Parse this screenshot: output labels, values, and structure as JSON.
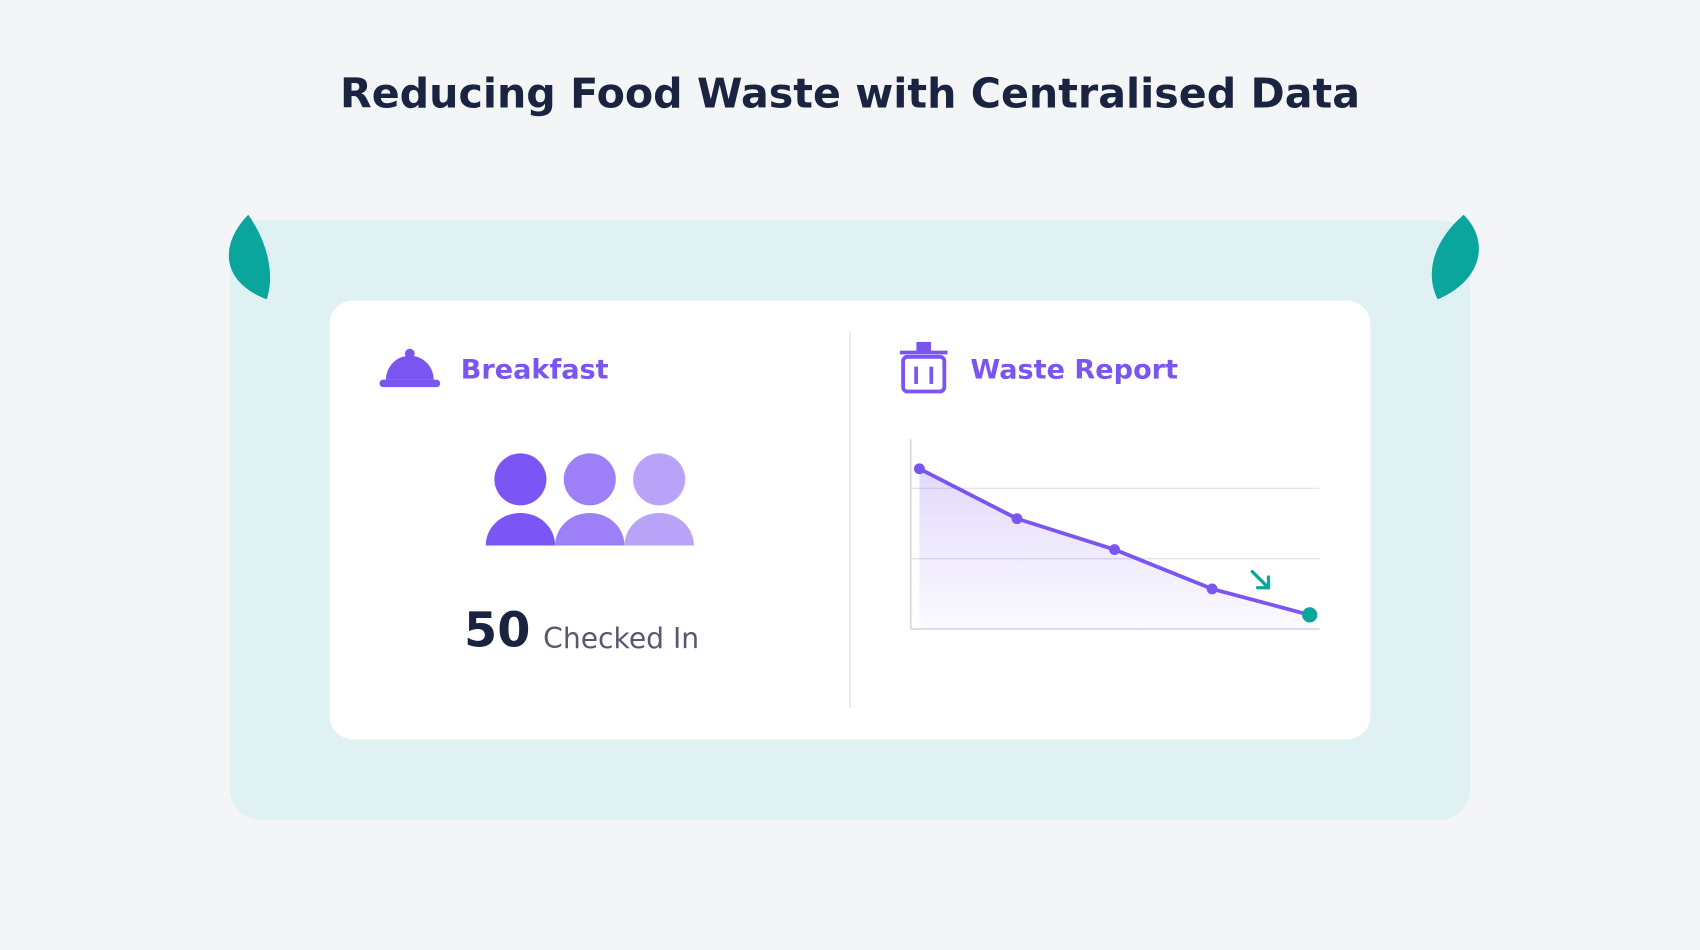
{
  "header": {
    "title": "Reducing Food Waste with Centralised Data"
  },
  "breakfast": {
    "title": "Breakfast",
    "count": 50,
    "count_label": "Checked In"
  },
  "waste_report": {
    "title": "Waste Report",
    "chart_data": {
      "type": "line",
      "categories": [
        null,
        null,
        null,
        null,
        null
      ],
      "values": [
        2.28,
        1.57,
        1.13,
        0.57,
        0.2
      ],
      "color": "#7b55f0",
      "last_point_color": "#0aa59c",
      "ylim": [
        0,
        2.7
      ],
      "yticks": [
        1,
        2
      ],
      "grid": true
    }
  }
}
